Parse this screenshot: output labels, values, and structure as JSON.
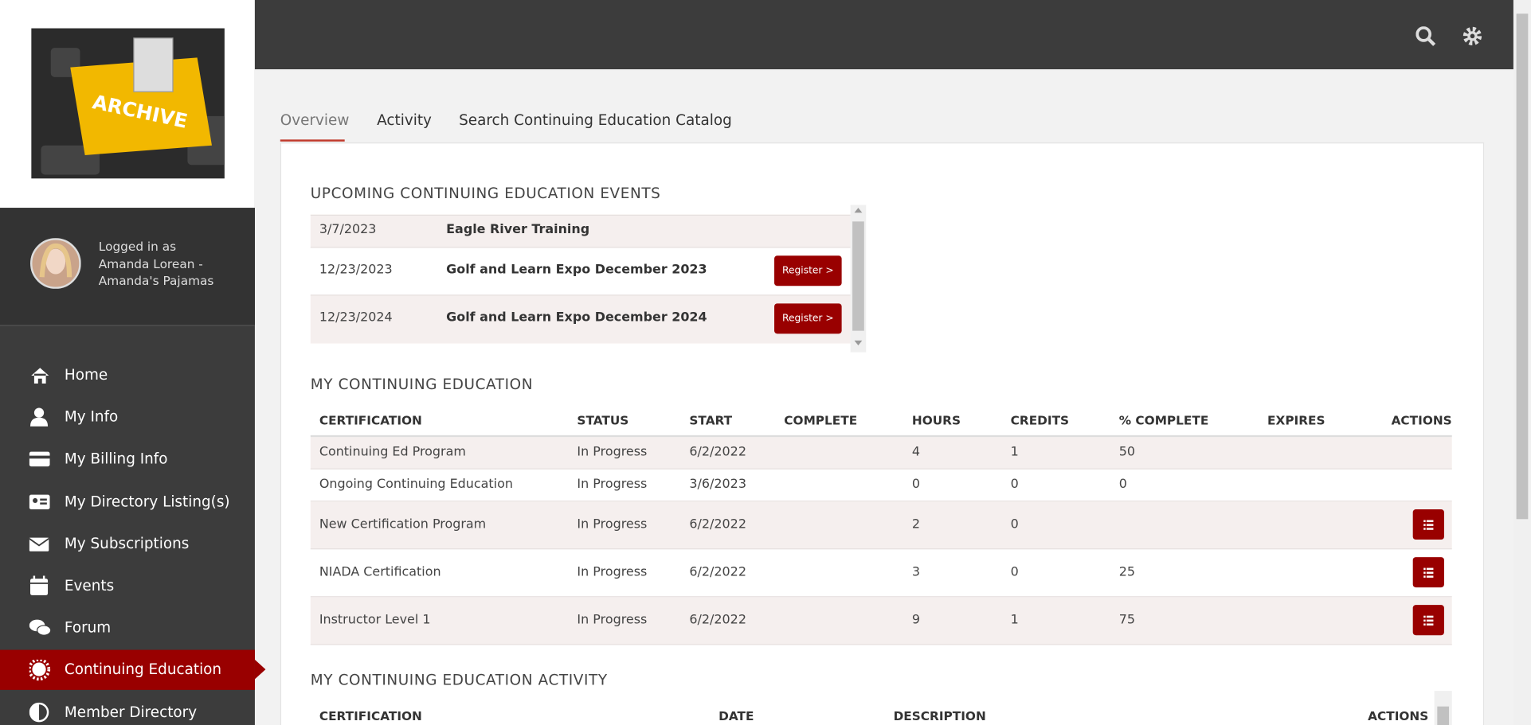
{
  "sidebar": {
    "logo_text": "ARCHIVE",
    "user": {
      "label": "Logged in as",
      "name": "Amanda Lorean - Amanda's Pajamas"
    },
    "nav": [
      "Home",
      "My Info",
      "My Billing Info",
      "My Directory Listing(s)",
      "My Subscriptions",
      "Events",
      "Forum",
      "Continuing Education",
      "Member Directory"
    ],
    "active": 7
  },
  "tabs": [
    "Overview",
    "Activity",
    "Search Continuing Education Catalog"
  ],
  "upcoming": {
    "title": "UPCOMING CONTINUING EDUCATION EVENTS",
    "rows": [
      {
        "date": "3/7/2023",
        "name": "Eagle River Training"
      },
      {
        "date": "12/23/2023",
        "name": "Golf and Learn Expo December 2023",
        "button": "Register >"
      },
      {
        "date": "12/23/2024",
        "name": "Golf and Learn Expo December 2024",
        "button": "Register >"
      }
    ]
  },
  "my_ce": {
    "title": "MY CONTINUING EDUCATION",
    "columns": [
      "CERTIFICATION",
      "STATUS",
      "START",
      "COMPLETE",
      "HOURS",
      "CREDITS",
      "% COMPLETE",
      "EXPIRES",
      "ACTIONS"
    ],
    "rows": [
      {
        "certification": "Continuing Ed Program",
        "status": "In Progress",
        "start": "6/2/2022",
        "hours": 4,
        "credits": 1,
        "percent": 50
      },
      {
        "certification": "Ongoing Continuing Education",
        "status": "In Progress",
        "start": "3/6/2023",
        "hours": 0,
        "credits": 0,
        "percent": 0
      },
      {
        "certification": "New Certification Program",
        "status": "In Progress",
        "start": "6/2/2022",
        "hours": 2,
        "credits": 0,
        "action": true
      },
      {
        "certification": "NIADA Certification",
        "status": "In Progress",
        "start": "6/2/2022",
        "hours": 3,
        "credits": 0,
        "percent": 25,
        "action": true
      },
      {
        "certification": "Instructor Level 1",
        "status": "In Progress",
        "start": "6/2/2022",
        "hours": 9,
        "credits": 1,
        "percent": 75,
        "action": true
      }
    ]
  },
  "activity": {
    "title": "MY CONTINUING EDUCATION ACTIVITY",
    "columns": [
      "CERTIFICATION",
      "DATE",
      "DESCRIPTION",
      "ACTIONS"
    ]
  }
}
